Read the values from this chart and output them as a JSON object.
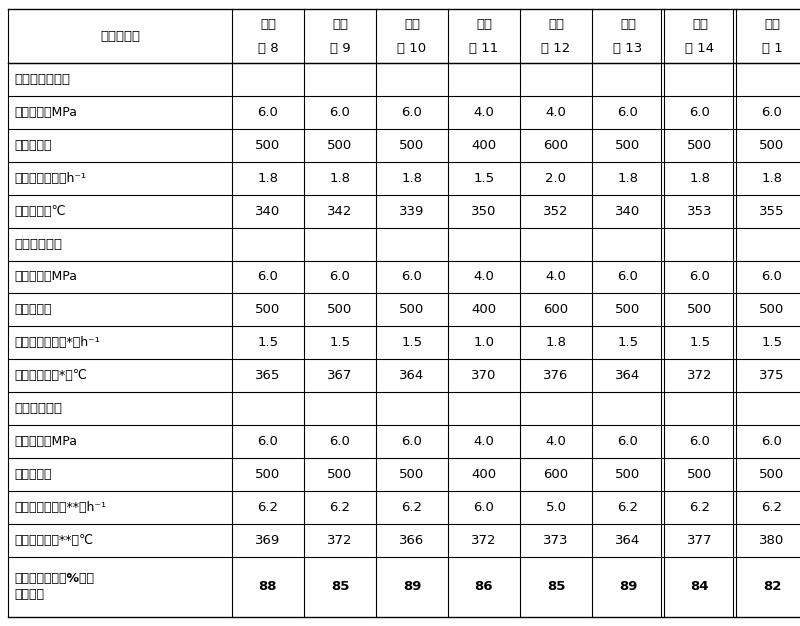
{
  "col_header_line1": [
    "实施例编号",
    "实施",
    "实施",
    "实施",
    "实施",
    "实施",
    "实施",
    "实施",
    "对比"
  ],
  "col_header_line2": [
    "",
    "例 8",
    "例 9",
    "例 10",
    "例 11",
    "例 12",
    "例 13",
    "例 14",
    "例 1"
  ],
  "rows": [
    {
      "label": "加氢预精制条件",
      "values": [
        "",
        "",
        "",
        "",
        "",
        "",
        "",
        ""
      ],
      "is_section": true
    },
    {
      "label": "反应压力，MPa",
      "values": [
        "6.0",
        "6.0",
        "6.0",
        "4.0",
        "4.0",
        "6.0",
        "6.0",
        "6.0"
      ],
      "is_section": false
    },
    {
      "label": "氢油体积比",
      "values": [
        "500",
        "500",
        "500",
        "400",
        "600",
        "500",
        "500",
        "500"
      ],
      "is_section": false
    },
    {
      "label": "液时体积空速，h⁻¹",
      "values": [
        "1.8",
        "1.8",
        "1.8",
        "1.5",
        "2.0",
        "1.8",
        "1.8",
        "1.8"
      ],
      "is_section": false
    },
    {
      "label": "反应温度，℃",
      "values": [
        "340",
        "342",
        "339",
        "350",
        "352",
        "340",
        "353",
        "355"
      ],
      "is_section": false
    },
    {
      "label": "临氢降凝条件",
      "values": [
        "",
        "",
        "",
        "",
        "",
        "",
        "",
        ""
      ],
      "is_section": true
    },
    {
      "label": "反应压力，MPa",
      "values": [
        "6.0",
        "6.0",
        "6.0",
        "4.0",
        "4.0",
        "6.0",
        "6.0",
        "6.0"
      ],
      "is_section": false
    },
    {
      "label": "氢油体积比",
      "values": [
        "500",
        "500",
        "500",
        "400",
        "600",
        "500",
        "500",
        "500"
      ],
      "is_section": false
    },
    {
      "label": "总液时体积空速*，h⁻¹",
      "values": [
        "1.5",
        "1.5",
        "1.5",
        "1.0",
        "1.8",
        "1.5",
        "1.5",
        "1.5"
      ],
      "is_section": false
    },
    {
      "label": "平均反应温度*，℃",
      "values": [
        "365",
        "367",
        "364",
        "370",
        "376",
        "364",
        "372",
        "375"
      ],
      "is_section": false
    },
    {
      "label": "加氢精制条件",
      "values": [
        "",
        "",
        "",
        "",
        "",
        "",
        "",
        ""
      ],
      "is_section": true
    },
    {
      "label": "反应压力，MPa",
      "values": [
        "6.0",
        "6.0",
        "6.0",
        "4.0",
        "4.0",
        "6.0",
        "6.0",
        "6.0"
      ],
      "is_section": false
    },
    {
      "label": "氢油体积比",
      "values": [
        "500",
        "500",
        "500",
        "400",
        "600",
        "500",
        "500",
        "500"
      ],
      "is_section": false
    },
    {
      "label": "总液时体积空速**，h⁻¹",
      "values": [
        "6.2",
        "6.2",
        "6.2",
        "6.0",
        "5.0",
        "6.2",
        "6.2",
        "6.2"
      ],
      "is_section": false
    },
    {
      "label": "平均反应温度**，℃",
      "values": [
        "369",
        "372",
        "366",
        "372",
        "373",
        "364",
        "377",
        "380"
      ],
      "is_section": false
    },
    {
      "label": "低凝柴油收率，%（质\n量分数）",
      "values": [
        "88",
        "85",
        "89",
        "86",
        "85",
        "89",
        "84",
        "82"
      ],
      "is_section": false,
      "bold": true
    }
  ],
  "special_vlines": [
    6,
    7
  ],
  "bg_color": "#ffffff",
  "line_color": "#000000",
  "font_size": 9.5,
  "header_font_size": 9.5
}
